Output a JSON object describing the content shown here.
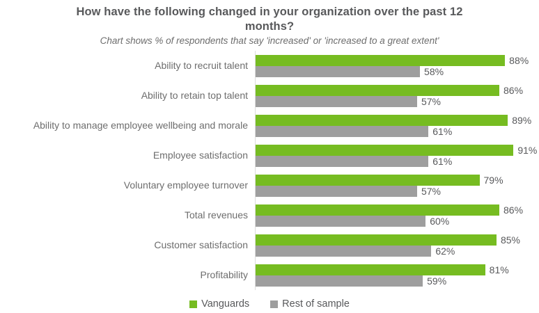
{
  "title": "How have the following changed in your organization over the past 12 months?",
  "subtitle": "Chart shows % of respondents that say 'increased' or 'increased to a great extent'",
  "colors": {
    "vanguards_green": "#76bc21",
    "rest_gray": "#9e9e9e",
    "axis_line": "#dcdcdc",
    "title_text": "#58595b",
    "category_text": "#6d6d6d"
  },
  "chart_data": {
    "type": "bar",
    "orientation": "horizontal",
    "title": "How have the following changed in your organization over the past 12 months?",
    "subtitle": "Chart shows % of respondents that say 'increased' or 'increased to a great extent'",
    "xlabel": "",
    "ylabel": "",
    "xlim": [
      0,
      100
    ],
    "value_suffix": "%",
    "grid": false,
    "legend_position": "bottom",
    "categories": [
      "Ability to recruit talent",
      "Ability to retain top talent",
      "Ability to manage employee wellbeing and morale",
      "Employee satisfaction",
      "Voluntary employee turnover",
      "Total revenues",
      "Customer satisfaction",
      "Profitability"
    ],
    "series": [
      {
        "name": "Vanguards",
        "color": "#76bc21",
        "values": [
          88,
          86,
          89,
          91,
          79,
          86,
          85,
          81
        ]
      },
      {
        "name": "Rest of sample",
        "color": "#9e9e9e",
        "values": [
          58,
          57,
          61,
          61,
          57,
          60,
          62,
          59
        ]
      }
    ]
  }
}
